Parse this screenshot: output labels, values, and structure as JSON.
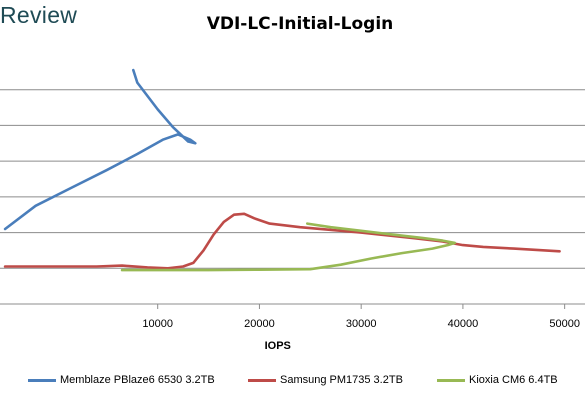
{
  "brand": {
    "text": "Review"
  },
  "chart_data": {
    "type": "line",
    "title": "VDI-LC-Initial-Login",
    "xlabel": "IOPS",
    "ylabel": "",
    "xlim": [
      -5500,
      52000
    ],
    "x_ticks": [
      10000,
      20000,
      30000,
      40000,
      50000
    ],
    "x_tick_labels": [
      "10000",
      "20000",
      "30000",
      "40000",
      "50000"
    ],
    "ylim": [
      0,
      14
    ],
    "y_gridlines": [
      2,
      4,
      6,
      8,
      10,
      12
    ],
    "grid": true,
    "legend_position": "bottom",
    "series": [
      {
        "name": "Memblaze PBlaze6 6530 3.2TB",
        "color": "#4a7ebb",
        "points": [
          [
            -5000,
            4.2
          ],
          [
            -2000,
            5.5
          ],
          [
            1500,
            6.5
          ],
          [
            5000,
            7.5
          ],
          [
            8000,
            8.4
          ],
          [
            10500,
            9.2
          ],
          [
            12000,
            9.5
          ],
          [
            13200,
            9.2
          ],
          [
            13700,
            9.0
          ],
          [
            13000,
            9.1
          ],
          [
            11500,
            9.9
          ],
          [
            10000,
            10.9
          ],
          [
            8000,
            12.4
          ],
          [
            7600,
            13.1
          ]
        ]
      },
      {
        "name": "Samsung PM1735 3.2TB",
        "color": "#be4b48",
        "points": [
          [
            -5000,
            2.1
          ],
          [
            0,
            2.1
          ],
          [
            4000,
            2.1
          ],
          [
            6500,
            2.15
          ],
          [
            9000,
            2.05
          ],
          [
            11000,
            2.0
          ],
          [
            12500,
            2.1
          ],
          [
            13500,
            2.3
          ],
          [
            14500,
            3.0
          ],
          [
            15500,
            3.9
          ],
          [
            16500,
            4.6
          ],
          [
            17500,
            5.0
          ],
          [
            18500,
            5.05
          ],
          [
            19500,
            4.8
          ],
          [
            21000,
            4.5
          ],
          [
            24000,
            4.3
          ],
          [
            30000,
            4.0
          ],
          [
            35000,
            3.7
          ],
          [
            38000,
            3.5
          ],
          [
            40000,
            3.3
          ],
          [
            42000,
            3.2
          ],
          [
            45000,
            3.1
          ],
          [
            49500,
            2.95
          ]
        ]
      },
      {
        "name": "Kioxia CM6 6.4TB",
        "color": "#98b954",
        "points": [
          [
            6500,
            1.9
          ],
          [
            10000,
            1.9
          ],
          [
            15000,
            1.9
          ],
          [
            20000,
            1.92
          ],
          [
            25000,
            1.95
          ],
          [
            28000,
            2.2
          ],
          [
            31000,
            2.55
          ],
          [
            34000,
            2.85
          ],
          [
            37000,
            3.1
          ],
          [
            38500,
            3.3
          ],
          [
            39200,
            3.42
          ],
          [
            38000,
            3.55
          ],
          [
            36000,
            3.7
          ],
          [
            33000,
            3.9
          ],
          [
            30000,
            4.1
          ],
          [
            27000,
            4.3
          ],
          [
            24700,
            4.5
          ]
        ]
      }
    ]
  }
}
